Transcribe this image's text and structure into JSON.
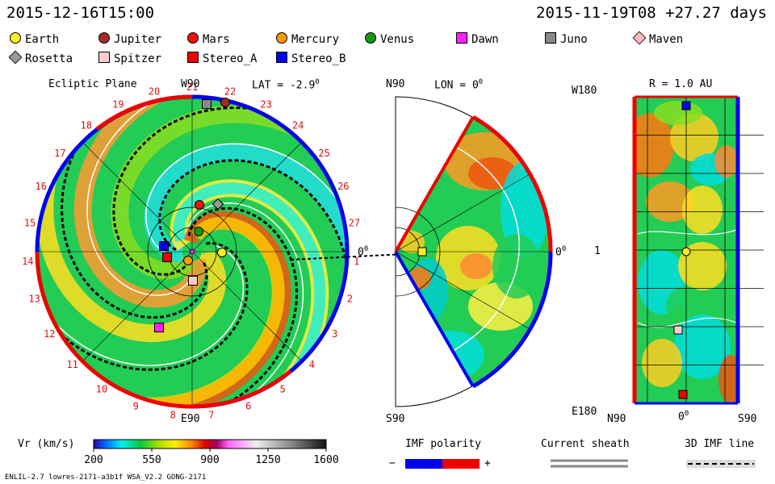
{
  "header": {
    "left_datetime": "2015-12-16T15:00",
    "right_datetime": "2015-11-19T08 +27.27 days"
  },
  "legend": {
    "items": [
      {
        "label": "Earth",
        "shape": "circle",
        "color": "#ffee22"
      },
      {
        "label": "Jupiter",
        "shape": "circle",
        "color": "#a52a2a"
      },
      {
        "label": "Mars",
        "shape": "circle",
        "color": "#ee1111"
      },
      {
        "label": "Mercury",
        "shape": "circle",
        "color": "#ff9900"
      },
      {
        "label": "Venus",
        "shape": "circle",
        "color": "#119911"
      },
      {
        "label": "Dawn",
        "shape": "square",
        "color": "#ff22ff"
      },
      {
        "label": "Juno",
        "shape": "square",
        "color": "#888888"
      },
      {
        "label": "Maven",
        "shape": "diamond",
        "color": "#ffbbbb"
      },
      {
        "label": "Rosetta",
        "shape": "diamond",
        "color": "#999999"
      },
      {
        "label": "Spitzer",
        "shape": "square",
        "color": "#ffcccc"
      },
      {
        "label": "Stereo_A",
        "shape": "square",
        "color": "#ee0000"
      },
      {
        "label": "Stereo_B",
        "shape": "square",
        "color": "#0000ee"
      }
    ]
  },
  "chart_data": [
    {
      "type": "heatmap",
      "title": "Ecliptic Plane",
      "top_label": "W90",
      "bottom_label": "E90",
      "lat_label": "LAT = -2.9",
      "lat_degree": "0",
      "right_axis_label": "0",
      "right_axis_degree": "0",
      "carrington_ticks": [
        "1",
        "2",
        "3",
        "4",
        "5",
        "6",
        "7",
        "8",
        "9",
        "10",
        "11",
        "12",
        "13",
        "14",
        "15",
        "16",
        "17",
        "18",
        "19",
        "20",
        "21",
        "22",
        "23",
        "24",
        "25",
        "26",
        "27"
      ],
      "bodies": [
        {
          "name": "Jupiter",
          "shape": "circle",
          "color": "#a52a2a"
        },
        {
          "name": "Juno",
          "shape": "square",
          "color": "#888888"
        },
        {
          "name": "Mars",
          "shape": "circle",
          "color": "#ee1111"
        },
        {
          "name": "Rosetta",
          "shape": "diamond",
          "color": "#999999"
        },
        {
          "name": "Venus",
          "shape": "circle",
          "color": "#119911"
        },
        {
          "name": "Stereo_B",
          "shape": "square",
          "color": "#0000ee"
        },
        {
          "name": "Stereo_A",
          "shape": "square",
          "color": "#ee0000"
        },
        {
          "name": "Mercury",
          "shape": "circle",
          "color": "#ff9900"
        },
        {
          "name": "Earth",
          "shape": "circle",
          "color": "#ffee22"
        },
        {
          "name": "Spitzer",
          "shape": "square",
          "color": "#ffcccc"
        },
        {
          "name": "Dawn",
          "shape": "square",
          "color": "#ff22ff"
        }
      ]
    },
    {
      "type": "heatmap",
      "title": "LON = 0",
      "title_degree": "0",
      "top_label": "N90",
      "bottom_label": "S90",
      "right_axis_label": "0",
      "right_axis_degree": "0",
      "bodies": [
        {
          "name": "Earth",
          "shape": "square",
          "color": "#ffee22"
        }
      ]
    },
    {
      "type": "heatmap",
      "title": "R = 1.0 AU",
      "left_top_label": "W180",
      "left_mid_label": "1",
      "left_bottom_label": "E180",
      "bottom_labels": [
        "N90",
        "0",
        "S90"
      ],
      "bottom_mid_degree": "0",
      "bodies": [
        {
          "name": "Stereo_B",
          "shape": "square",
          "color": "#0000ee"
        },
        {
          "name": "Earth",
          "shape": "circle",
          "color": "#ffee22"
        },
        {
          "name": "Spitzer",
          "shape": "square",
          "color": "#ffcccc"
        },
        {
          "name": "Stereo_A",
          "shape": "square",
          "color": "#ee0000"
        }
      ]
    },
    {
      "type": "colorbar",
      "label": "Vr (km/s)",
      "ticks": [
        "200",
        "550",
        "900",
        "1250",
        "1600"
      ],
      "range": [
        200,
        1600
      ]
    }
  ],
  "bottom_legend": {
    "imf_label": "IMF polarity",
    "minus": "−",
    "plus": "+",
    "negative_color": "#0000ee",
    "positive_color": "#ee0000",
    "current_sheath_label": "Current sheath",
    "imf_3d_label": "3D IMF line"
  },
  "footer": {
    "text": "ENLIL-2.7 lowres-2171-a3b1f WSA_V2.2 GONG-2171"
  }
}
